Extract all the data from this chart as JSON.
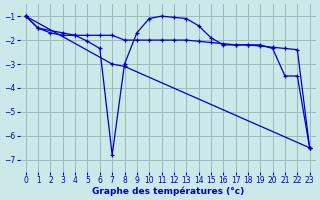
{
  "line_color": "#0000cc",
  "bg_color": "#cce8e8",
  "grid_color": "#99bbbb",
  "xlabel": "Graphe des températures (°c)",
  "xlim": [
    -0.5,
    23.5
  ],
  "ylim": [
    -7.5,
    -0.5
  ],
  "xticks": [
    0,
    1,
    2,
    3,
    4,
    5,
    6,
    7,
    8,
    9,
    10,
    11,
    12,
    13,
    14,
    15,
    16,
    17,
    18,
    19,
    20,
    21,
    22,
    23
  ],
  "yticks": [
    -7,
    -6,
    -5,
    -4,
    -3,
    -2,
    -1
  ],
  "xlabel_fontsize": 6.5,
  "tick_fontsize": 5.5,
  "curve1_x": [
    0,
    1,
    3,
    4,
    5,
    6,
    7,
    8,
    9,
    10,
    11,
    12,
    13,
    14,
    15,
    16,
    17,
    18,
    19,
    20,
    21,
    22,
    23
  ],
  "curve1_y": [
    -1.0,
    -1.5,
    -1.7,
    -1.8,
    -2.05,
    -2.35,
    -6.8,
    -3.0,
    -1.7,
    -1.1,
    -1.0,
    -1.05,
    -1.1,
    -1.4,
    -1.9,
    -2.2,
    -2.2,
    -2.2,
    -2.2,
    -2.35,
    -3.5,
    -3.5,
    -6.5
  ],
  "curve2_x": [
    0,
    1,
    2,
    3,
    4,
    5,
    6,
    7,
    8,
    9,
    10,
    11,
    12,
    13,
    14,
    15,
    16,
    17,
    18,
    19,
    20,
    21,
    22,
    23
  ],
  "curve2_y": [
    -1.0,
    -1.5,
    -1.7,
    -1.8,
    -1.8,
    -1.8,
    -1.8,
    -1.8,
    -2.0,
    -2.0,
    -2.0,
    -2.0,
    -2.0,
    -2.0,
    -2.05,
    -2.1,
    -2.15,
    -2.2,
    -2.2,
    -2.25,
    -2.3,
    -2.35,
    -2.4,
    -6.5
  ],
  "curve3_x": [
    0,
    7,
    8,
    23
  ],
  "curve3_y": [
    -1.0,
    -3.0,
    -3.1,
    -6.5
  ]
}
